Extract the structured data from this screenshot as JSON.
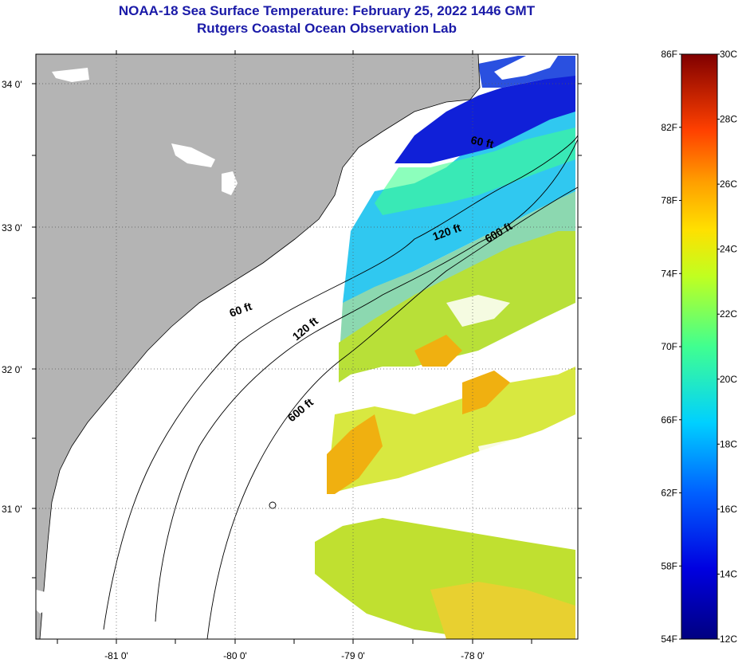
{
  "header": {
    "title": "NOAA-18 Sea Surface Temperature:  February 25, 2022 1446 GMT",
    "subtitle": "Rutgers Coastal Ocean Observation Lab"
  },
  "map": {
    "lat_labels": [
      "34 0'",
      "33 0'",
      "32 0'",
      "31 0'"
    ],
    "lon_labels": [
      "-81 0'",
      "-80 0'",
      "-79 0'",
      "-78 0'"
    ],
    "contour_labels": [
      "60 ft",
      "120 ft",
      "600 ft",
      "60 ft",
      "120 ft",
      "600 ft"
    ],
    "colors": {
      "land": "#b4b4b4",
      "cold": "#1020d8",
      "cool": "#30c8f0",
      "mild": "#a8e030",
      "warm": "#f0b010",
      "no_data": "#ffffff"
    }
  },
  "colorbar": {
    "fahrenheit": [
      "86F",
      "82F",
      "78F",
      "74F",
      "70F",
      "66F",
      "62F",
      "58F",
      "54F"
    ],
    "celsius": [
      "30C",
      "28C",
      "26C",
      "24C",
      "22C",
      "20C",
      "18C",
      "16C",
      "14C",
      "12C"
    ],
    "range_c": [
      12,
      30
    ],
    "range_f": [
      54,
      86
    ]
  }
}
